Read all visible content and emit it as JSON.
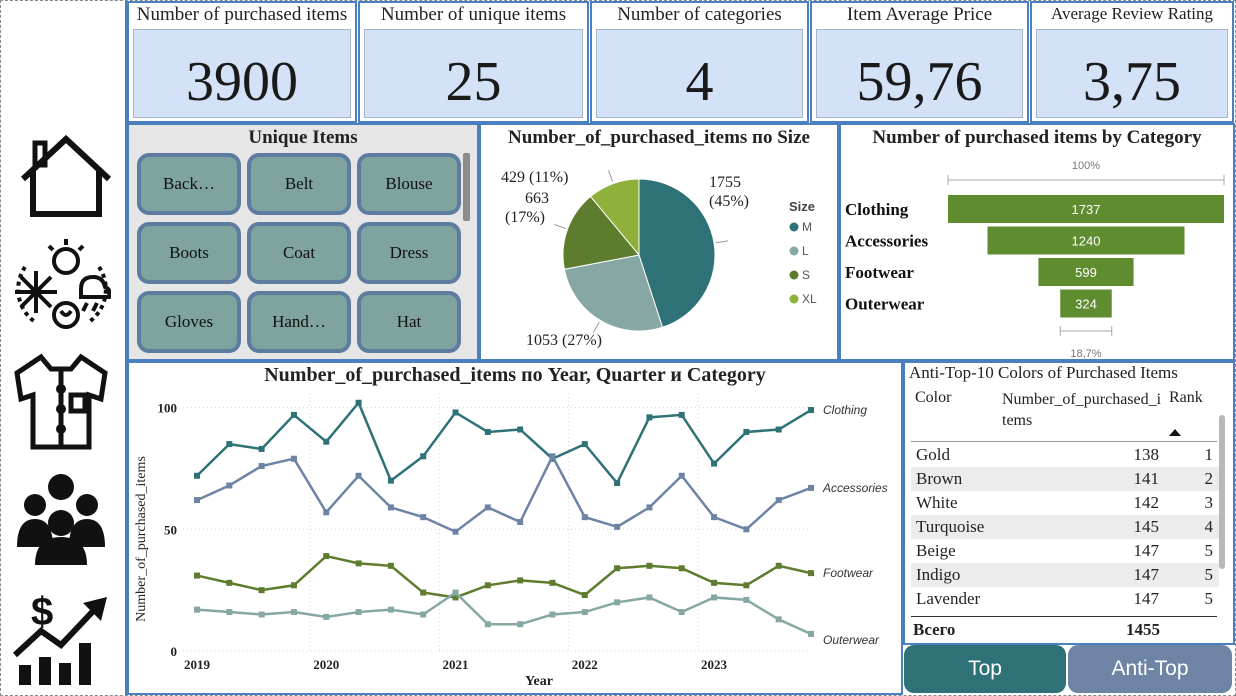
{
  "nav": {
    "items": [
      {
        "name": "home-icon"
      },
      {
        "name": "seasons-icon"
      },
      {
        "name": "shirt-icon"
      },
      {
        "name": "customers-icon"
      },
      {
        "name": "revenue-growth-icon"
      }
    ]
  },
  "kpis": [
    {
      "title": "Number of purchased items",
      "value": "3900"
    },
    {
      "title": "Number of unique items",
      "value": "25"
    },
    {
      "title": "Number of categories",
      "value": "4"
    },
    {
      "title": "Item Average Price",
      "value": "59,76"
    },
    {
      "title": "Average Review Rating",
      "value": "3,75"
    }
  ],
  "unique_items": {
    "title": "Unique Items",
    "items": [
      "Back…",
      "Belt",
      "Blouse",
      "Boots",
      "Coat",
      "Dress",
      "Gloves",
      "Hand…",
      "Hat"
    ]
  },
  "pie": {
    "title": "Number_of_purchased_items по Size",
    "legend_title": "Size"
  },
  "funnel": {
    "title": "Number of purchased items by Category",
    "top_label": "100%",
    "bottom_label": "18,7%"
  },
  "line": {
    "title": "Number_of_purchased_items по Year, Quarter и Category"
  },
  "colors_table": {
    "title": "Anti-Top-10 Colors of Purchased Items",
    "col_color": "Color",
    "col_count": "Number_of_purchased_items",
    "col_rank": "Rank",
    "rows": [
      {
        "color": "Gold",
        "count": "138",
        "rank": "1"
      },
      {
        "color": "Brown",
        "count": "141",
        "rank": "2"
      },
      {
        "color": "White",
        "count": "142",
        "rank": "3"
      },
      {
        "color": "Turquoise",
        "count": "145",
        "rank": "4"
      },
      {
        "color": "Beige",
        "count": "147",
        "rank": "5"
      },
      {
        "color": "Indigo",
        "count": "147",
        "rank": "5"
      },
      {
        "color": "Lavender",
        "count": "147",
        "rank": "5"
      }
    ],
    "total_label": "Всего",
    "total_value": "1455"
  },
  "buttons": {
    "top": "Top",
    "anti_top": "Anti-Top"
  },
  "colors": {
    "accent_border": "#4a7fc0",
    "kpi_fill": "#d3e2f7",
    "teal": "#2e7277",
    "slate": "#6e84a5",
    "olive": "#5e7c2e",
    "sage": "#86a7a4",
    "lime": "#8fb03a",
    "funnel_green": "#5e8c2e"
  },
  "chart_data": [
    {
      "type": "pie",
      "title": "Number_of_purchased_items по Size",
      "legend_title": "Size",
      "legend_position": "right",
      "slices": [
        {
          "name": "M",
          "value": 1755,
          "pct_label": "1755 (45%)",
          "color": "#2e7277"
        },
        {
          "name": "L",
          "value": 1053,
          "pct_label": "1053 (27%)",
          "color": "#86a7a4"
        },
        {
          "name": "S",
          "value": 663,
          "pct_label": "663 (17%)",
          "color": "#5e7c2e"
        },
        {
          "name": "XL",
          "value": 429,
          "pct_label": "429 (11%)",
          "color": "#8fb03a"
        }
      ]
    },
    {
      "type": "bar",
      "subtype": "funnel",
      "title": "Number of purchased items by Category",
      "categories": [
        "Clothing",
        "Accessories",
        "Footwear",
        "Outerwear"
      ],
      "values": [
        1737,
        1240,
        599,
        324
      ],
      "top_label": "100%",
      "bottom_label": "18,7%"
    },
    {
      "type": "line",
      "title": "Number_of_purchased_items по Year, Quarter и Category",
      "xlabel": "Year",
      "ylabel": "Number_of_purchased_items",
      "x_tick_labels": [
        "2019",
        "2020",
        "2021",
        "2022",
        "2023"
      ],
      "yticks": [
        0,
        50,
        100
      ],
      "ylim": [
        0,
        106
      ],
      "grid": true,
      "x": [
        "2019 Q1",
        "2019 Q2",
        "2019 Q3",
        "2019 Q4",
        "2020 Q1",
        "2020 Q2",
        "2020 Q3",
        "2020 Q4",
        "2021 Q1",
        "2021 Q2",
        "2021 Q3",
        "2021 Q4",
        "2022 Q1",
        "2022 Q2",
        "2022 Q3",
        "2022 Q4",
        "2023 Q1",
        "2023 Q2",
        "2023 Q3",
        "2023 Q4"
      ],
      "series": [
        {
          "name": "Clothing",
          "color": "#2e7277",
          "values": [
            72,
            85,
            83,
            97,
            86,
            102,
            70,
            80,
            98,
            90,
            91,
            79,
            85,
            69,
            96,
            97,
            77,
            90,
            91,
            99
          ]
        },
        {
          "name": "Accessories",
          "color": "#6e84a5",
          "values": [
            62,
            68,
            76,
            79,
            57,
            72,
            59,
            55,
            49,
            59,
            53,
            80,
            55,
            51,
            59,
            72,
            55,
            50,
            62,
            67
          ]
        },
        {
          "name": "Footwear",
          "color": "#5e7c2e",
          "values": [
            31,
            28,
            25,
            27,
            39,
            36,
            35,
            24,
            22,
            27,
            29,
            28,
            23,
            34,
            35,
            34,
            28,
            27,
            35,
            32
          ]
        },
        {
          "name": "Outerwear",
          "color": "#86a7a4",
          "values": [
            17,
            16,
            15,
            16,
            14,
            16,
            17,
            15,
            24,
            11,
            11,
            15,
            16,
            20,
            22,
            16,
            22,
            21,
            13,
            7
          ]
        }
      ]
    }
  ]
}
